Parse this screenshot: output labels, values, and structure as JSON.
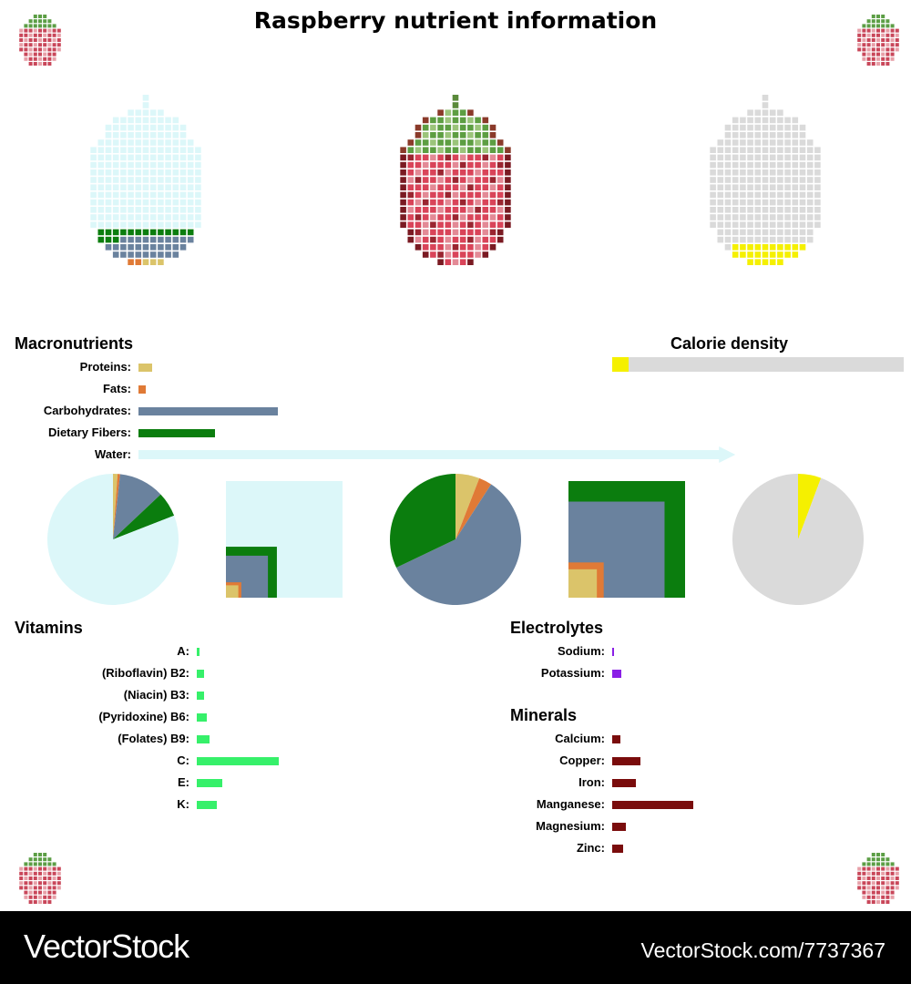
{
  "title": "Raspberry nutrient information",
  "colors": {
    "protein": "#dbc46a",
    "fat": "#e07a36",
    "carb": "#6a829e",
    "fiber": "#0b7d0e",
    "water": "#dcf7f9",
    "calorie": "#f5f000",
    "calorie_bg": "#dadada",
    "vitamin": "#36f06a",
    "electrolyte": "#8a1fe6",
    "mineral": "#7a0c0c"
  },
  "icons": [
    "raspberry-icon",
    "raspberry-icon",
    "raspberry-icon",
    "raspberry-icon"
  ],
  "chart_data": [
    {
      "type": "bar",
      "title": "Macronutrients",
      "categories": [
        "Proteins:",
        "Fats:",
        "Carbohydrates:",
        "Dietary Fibers:",
        "Water:"
      ],
      "values": [
        1.2,
        0.65,
        11.9,
        6.5,
        85.8
      ]
    },
    {
      "type": "bar",
      "title": "Calorie density",
      "values": [
        5.7
      ],
      "ylim": [
        0,
        100
      ]
    },
    {
      "type": "pie",
      "categories": [
        "Proteins",
        "Fats",
        "Carbohydrates",
        "Dietary Fibers",
        "Water"
      ],
      "values": [
        1.2,
        0.65,
        11.9,
        6.5,
        85.8
      ]
    },
    {
      "type": "pie",
      "categories": [
        "Proteins",
        "Fats",
        "Carbohydrates",
        "Dietary Fibers"
      ],
      "values": [
        1.2,
        0.65,
        11.9,
        6.5
      ]
    },
    {
      "type": "pie",
      "values": [
        5.7,
        94.3
      ]
    },
    {
      "type": "bar",
      "title": "Vitamins",
      "categories": [
        "A:",
        "(Riboflavin) B2:",
        "(Niacin) B3:",
        "(Pyridoxine) B6:",
        "(Folates) B9:",
        "C:",
        "E:",
        "K:"
      ],
      "values": [
        1,
        3,
        3,
        4,
        5,
        32,
        10,
        8
      ]
    },
    {
      "type": "bar",
      "title": "Electrolytes",
      "categories": [
        "Sodium:",
        "Potassium:"
      ],
      "values": [
        0.1,
        3.3
      ]
    },
    {
      "type": "bar",
      "title": "Minerals",
      "categories": [
        "Calcium:",
        "Copper:",
        "Iron:",
        "Manganese:",
        "Magnesium:",
        "Zinc:"
      ],
      "values": [
        3,
        10,
        8.5,
        29,
        5,
        4
      ]
    }
  ],
  "footer": {
    "brand": "VectorStock",
    "url": "VectorStock.com/7737367"
  }
}
